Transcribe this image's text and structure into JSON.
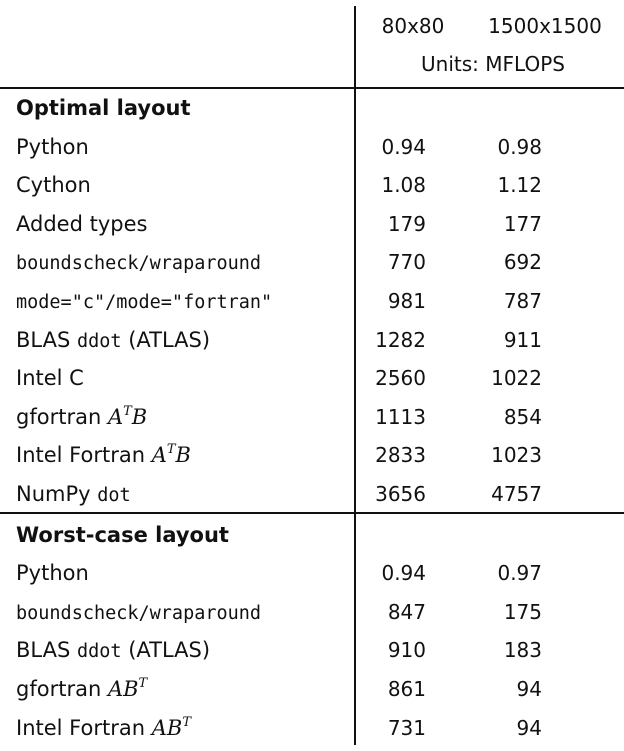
{
  "header": {
    "col1": "80x80",
    "col2": "1500x1500",
    "units": "Units:  MFLOPS"
  },
  "sections": [
    {
      "title": "Optimal layout",
      "rows": [
        {
          "label_parts": [
            {
              "t": "Python",
              "s": "text"
            }
          ],
          "v1": "0.94",
          "v2": "0.98"
        },
        {
          "label_parts": [
            {
              "t": "Cython",
              "s": "text"
            }
          ],
          "v1": "1.08",
          "v2": "1.12"
        },
        {
          "label_parts": [
            {
              "t": "Added types",
              "s": "text"
            }
          ],
          "v1": "179",
          "v2": "177"
        },
        {
          "label_parts": [
            {
              "t": "boundscheck/wraparound",
              "s": "mono"
            }
          ],
          "v1": "770",
          "v2": "692"
        },
        {
          "label_parts": [
            {
              "t": "mode=\"c\"/mode=\"fortran\"",
              "s": "mono"
            }
          ],
          "v1": "981",
          "v2": "787"
        },
        {
          "label_parts": [
            {
              "t": "BLAS ",
              "s": "text"
            },
            {
              "t": "ddot",
              "s": "mono"
            },
            {
              "t": " (ATLAS)",
              "s": "text"
            }
          ],
          "v1": "1282",
          "v2": "911"
        },
        {
          "label_parts": [
            {
              "t": "Intel C",
              "s": "text"
            }
          ],
          "v1": "2560",
          "v2": "1022"
        },
        {
          "label_parts": [
            {
              "t": "gfortran ",
              "s": "text"
            },
            {
              "t": "A",
              "s": "math"
            },
            {
              "t": "T",
              "s": "sup"
            },
            {
              "t": "B",
              "s": "math"
            }
          ],
          "v1": "1113",
          "v2": "854"
        },
        {
          "label_parts": [
            {
              "t": "Intel Fortran ",
              "s": "text"
            },
            {
              "t": "A",
              "s": "math"
            },
            {
              "t": "T",
              "s": "sup"
            },
            {
              "t": "B",
              "s": "math"
            }
          ],
          "v1": "2833",
          "v2": "1023"
        },
        {
          "label_parts": [
            {
              "t": "NumPy ",
              "s": "text"
            },
            {
              "t": "dot",
              "s": "mono"
            }
          ],
          "v1": "3656",
          "v2": "4757"
        }
      ]
    },
    {
      "title": "Worst-case layout",
      "rows": [
        {
          "label_parts": [
            {
              "t": "Python",
              "s": "text"
            }
          ],
          "v1": "0.94",
          "v2": "0.97"
        },
        {
          "label_parts": [
            {
              "t": "boundscheck/wraparound",
              "s": "mono"
            }
          ],
          "v1": "847",
          "v2": "175"
        },
        {
          "label_parts": [
            {
              "t": "BLAS ",
              "s": "text"
            },
            {
              "t": "ddot",
              "s": "mono"
            },
            {
              "t": " (ATLAS)",
              "s": "text"
            }
          ],
          "v1": "910",
          "v2": "183"
        },
        {
          "label_parts": [
            {
              "t": "gfortran ",
              "s": "text"
            },
            {
              "t": "AB",
              "s": "math"
            },
            {
              "t": "T",
              "s": "sup"
            }
          ],
          "v1": "861",
          "v2": "94"
        },
        {
          "label_parts": [
            {
              "t": "Intel Fortran ",
              "s": "text"
            },
            {
              "t": "AB",
              "s": "math"
            },
            {
              "t": "T",
              "s": "sup"
            }
          ],
          "v1": "731",
          "v2": "94"
        }
      ]
    }
  ]
}
